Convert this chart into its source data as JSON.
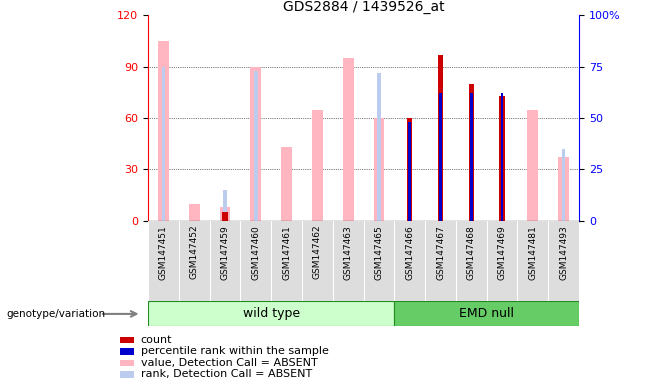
{
  "title": "GDS2884 / 1439526_at",
  "samples": [
    "GSM147451",
    "GSM147452",
    "GSM147459",
    "GSM147460",
    "GSM147461",
    "GSM147462",
    "GSM147463",
    "GSM147465",
    "GSM147466",
    "GSM147467",
    "GSM147468",
    "GSM147469",
    "GSM147481",
    "GSM147493"
  ],
  "wild_type_count": 8,
  "count_values": [
    0,
    0,
    5,
    0,
    0,
    0,
    0,
    0,
    60,
    97,
    80,
    73,
    0,
    0
  ],
  "rank_values": [
    0,
    0,
    0,
    0,
    0,
    0,
    0,
    0,
    48,
    62,
    62,
    62,
    0,
    0
  ],
  "absent_value_values": [
    105,
    10,
    8,
    90,
    43,
    65,
    95,
    60,
    0,
    0,
    0,
    0,
    65,
    37
  ],
  "absent_rank_values": [
    75,
    0,
    15,
    73,
    0,
    0,
    0,
    72,
    0,
    0,
    0,
    0,
    0,
    35
  ],
  "ylim_left": [
    0,
    120
  ],
  "ylim_right": [
    0,
    100
  ],
  "yticks_left": [
    0,
    30,
    60,
    90,
    120
  ],
  "yticks_right": [
    0,
    25,
    50,
    75,
    100
  ],
  "color_count": "#CC0000",
  "color_rank": "#0000CC",
  "color_absent_value": "#FFB6C1",
  "color_absent_rank": "#BBCCEE",
  "group_color_light": "#CCFFCC",
  "group_color_dark": "#66CC66",
  "group_border": "#228B22",
  "group_label": "genotype/variation",
  "legend_items": [
    {
      "label": "count",
      "color": "#CC0000"
    },
    {
      "label": "percentile rank within the sample",
      "color": "#0000CC"
    },
    {
      "label": "value, Detection Call = ABSENT",
      "color": "#FFB6C1"
    },
    {
      "label": "rank, Detection Call = ABSENT",
      "color": "#BBCCEE"
    }
  ],
  "title_fontsize": 10,
  "axis_fontsize": 8,
  "legend_fontsize": 8,
  "group_fontsize": 9,
  "sample_fontsize": 6.5
}
